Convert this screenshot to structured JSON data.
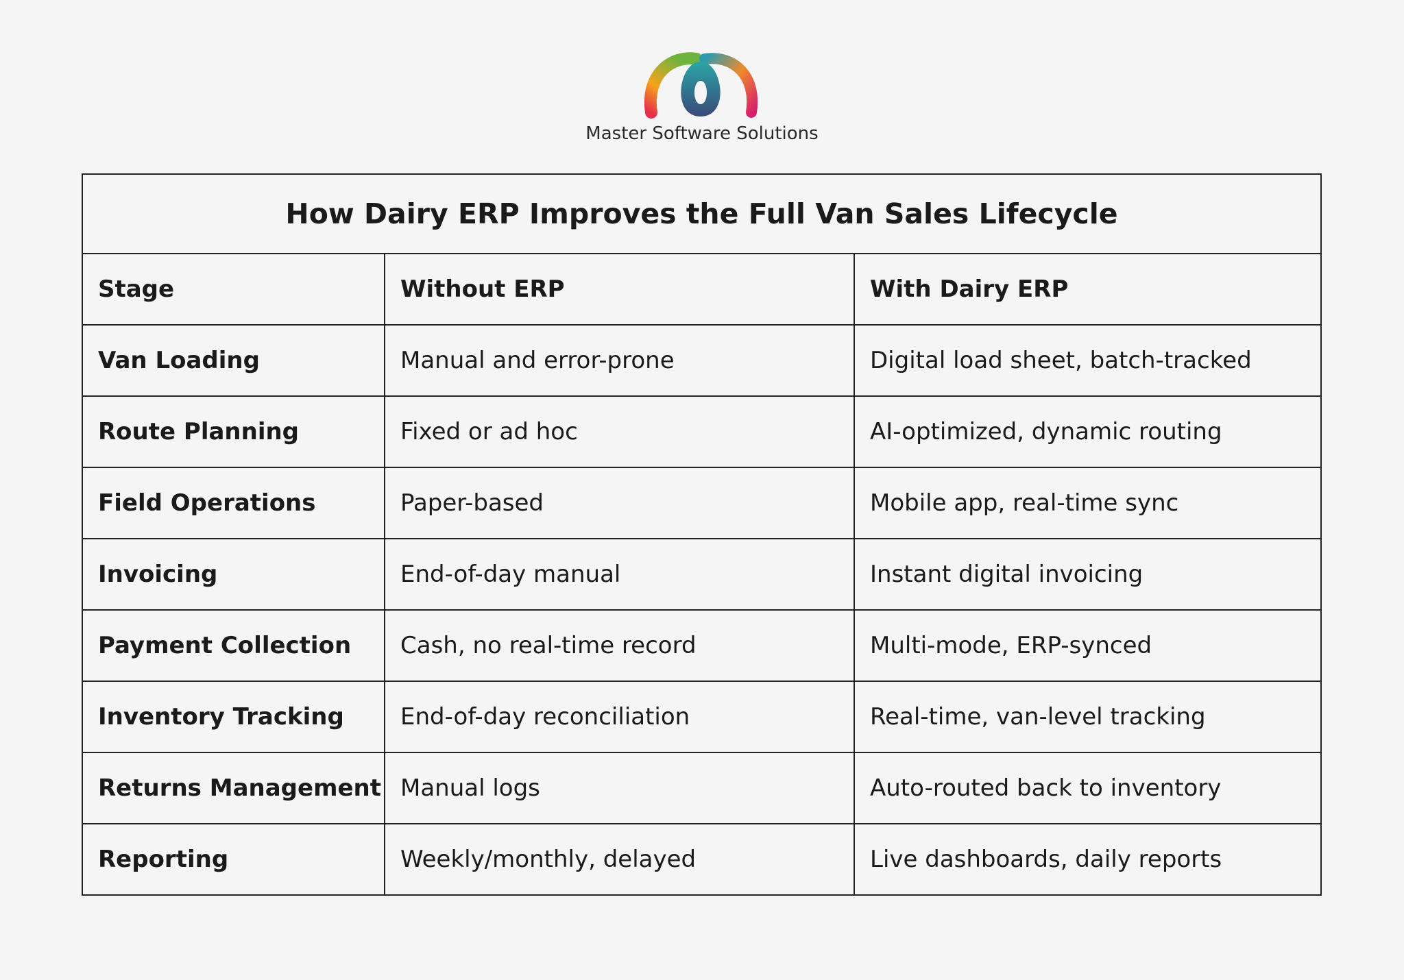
{
  "header": {
    "brand": "Master Software Solutions"
  },
  "table": {
    "title": "How Dairy ERP Improves the Full Van Sales Lifecycle",
    "columns": [
      "Stage",
      "Without ERP",
      "With Dairy ERP"
    ],
    "rows": [
      [
        "Van Loading",
        "Manual and error-prone",
        "Digital load sheet, batch-tracked"
      ],
      [
        "Route Planning",
        "Fixed or ad hoc",
        "AI-optimized, dynamic routing"
      ],
      [
        "Field Operations",
        "Paper-based",
        "Mobile app, real-time sync"
      ],
      [
        "Invoicing",
        "End-of-day manual",
        "Instant digital invoicing"
      ],
      [
        "Payment Collection",
        "Cash, no real-time record",
        "Multi-mode, ERP-synced"
      ],
      [
        "Inventory Tracking",
        "End-of-day reconciliation",
        "Real-time, van-level tracking"
      ],
      [
        "Returns Management",
        "Manual logs",
        "Auto-routed back to inventory"
      ],
      [
        "Reporting",
        "Weekly/monthly, delayed",
        "Live dashboards, daily reports"
      ]
    ]
  }
}
